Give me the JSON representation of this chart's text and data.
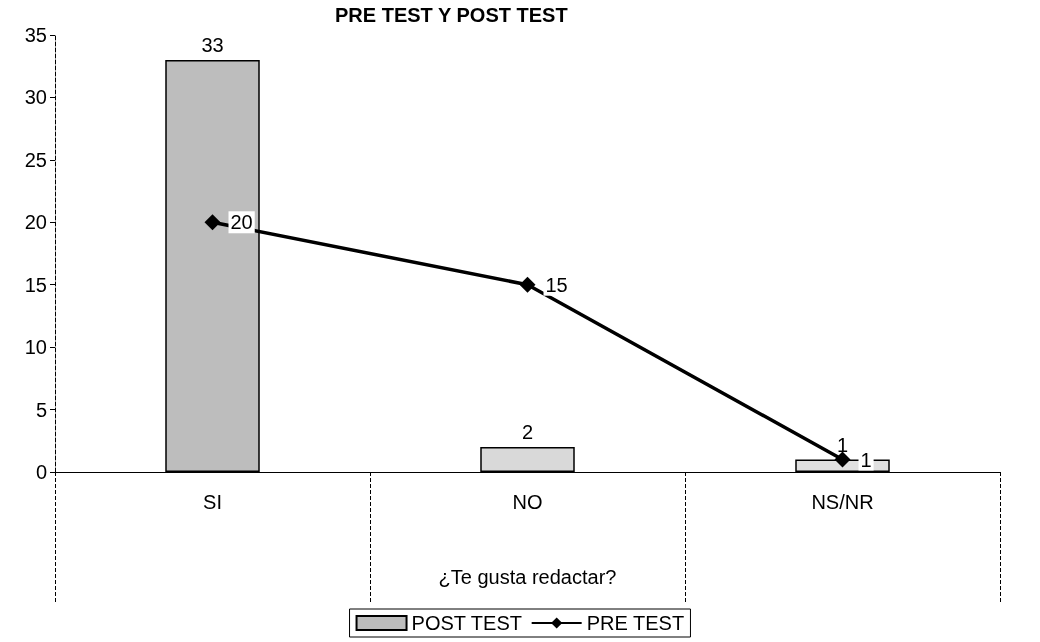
{
  "chart_data": {
    "type": "bar",
    "title": "PRE TEST Y POST TEST",
    "xlabel": "¿Te gusta redactar?",
    "categories": [
      "SI",
      "NO",
      "NS/NR"
    ],
    "series": [
      {
        "name": "POST TEST",
        "colors": [
          "#bdbdbd",
          "#d9d9d9",
          "#e0e0e0"
        ],
        "values": [
          33,
          2,
          1
        ]
      },
      {
        "name": "PRE TEST",
        "type": "line",
        "color": "#000000",
        "marker": "diamond",
        "line_style": "solid",
        "values": [
          20,
          15,
          1
        ]
      }
    ],
    "ylim": [
      0,
      35
    ],
    "yticks": [
      0,
      5,
      10,
      15,
      20,
      25,
      30,
      35
    ],
    "grid": false,
    "legend": "bottom",
    "data_labels": true
  }
}
